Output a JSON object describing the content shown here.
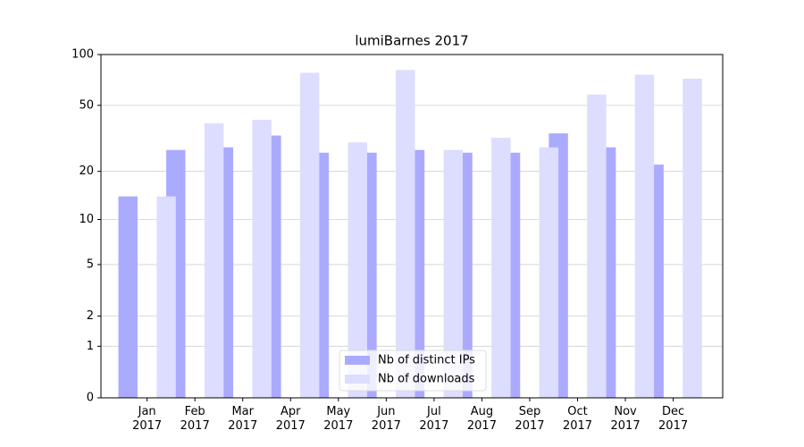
{
  "chart_data": {
    "type": "bar",
    "title": "lumiBarnes 2017",
    "categories": [
      "Jan\n2017",
      "Feb\n2017",
      "Mar\n2017",
      "Apr\n2017",
      "May\n2017",
      "Jun\n2017",
      "Jul\n2017",
      "Aug\n2017",
      "Sep\n2017",
      "Oct\n2017",
      "Nov\n2017",
      "Dec\n2017"
    ],
    "series": [
      {
        "name": "Nb of distinct IPs",
        "color": "#aaaaff",
        "values": [
          14,
          27,
          28,
          33,
          26,
          26,
          27,
          26,
          26,
          34,
          28,
          22
        ]
      },
      {
        "name": "Nb of downloads",
        "color": "#ddddff",
        "values": [
          14,
          39,
          41,
          78,
          30,
          81,
          27,
          32,
          28,
          58,
          76,
          72
        ]
      }
    ],
    "yscale": "log1p",
    "ylim": [
      0,
      100
    ],
    "yticks": [
      0,
      1,
      2,
      5,
      10,
      20,
      50,
      100
    ],
    "grid": true,
    "legend": "lower center"
  }
}
